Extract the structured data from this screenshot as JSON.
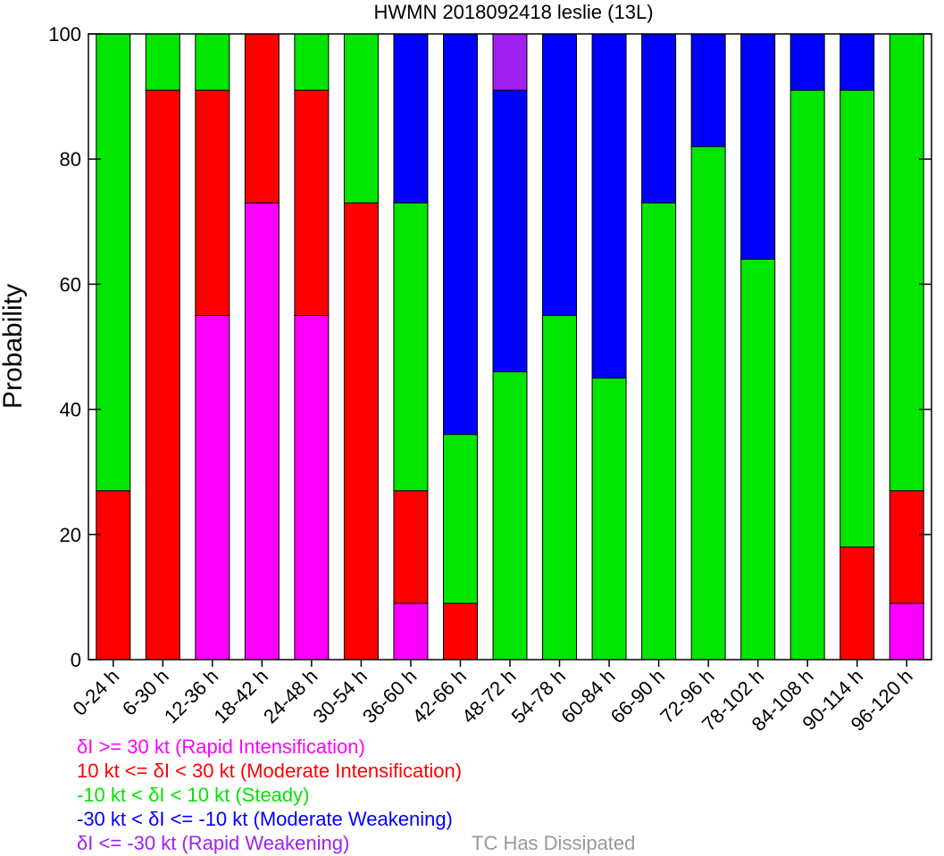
{
  "chart_data": {
    "type": "bar",
    "stacked": true,
    "title": "HWMN 2018092418 leslie (13L)",
    "xlabel": "",
    "ylabel": "Probability",
    "ylim": [
      0,
      100
    ],
    "yticks": [
      0,
      20,
      40,
      60,
      80,
      100
    ],
    "grid": false,
    "categories": [
      "0-24 h",
      "6-30 h",
      "12-36 h",
      "18-42 h",
      "24-48 h",
      "30-54 h",
      "36-60 h",
      "42-66 h",
      "48-72 h",
      "54-78 h",
      "60-84 h",
      "66-90 h",
      "72-96 h",
      "78-102 h",
      "84-108 h",
      "90-114 h",
      "96-120 h"
    ],
    "series": [
      {
        "name": "δI >= 30 kt (Rapid Intensification)",
        "color": "#ff00ff",
        "values": [
          0,
          0,
          55,
          73,
          55,
          0,
          9,
          0,
          0,
          0,
          0,
          0,
          0,
          0,
          0,
          0,
          9
        ]
      },
      {
        "name": "10 kt <= δI < 30 kt (Moderate Intensification)",
        "color": "#ff0000",
        "values": [
          27,
          91,
          36,
          27,
          36,
          73,
          18,
          9,
          0,
          0,
          0,
          0,
          0,
          0,
          0,
          18,
          18
        ]
      },
      {
        "name": "-10 kt < δI < 10 kt (Steady)",
        "color": "#00e600",
        "values": [
          73,
          9,
          9,
          0,
          9,
          27,
          46,
          27,
          46,
          55,
          45,
          73,
          82,
          64,
          91,
          73,
          73
        ]
      },
      {
        "name": "-30 kt < δI <= -10 kt (Moderate Weakening)",
        "color": "#0000ff",
        "values": [
          0,
          0,
          0,
          0,
          0,
          0,
          27,
          64,
          45,
          45,
          55,
          27,
          18,
          36,
          9,
          9,
          0
        ]
      },
      {
        "name": "δI <= -30 kt (Rapid Weakening)",
        "color": "#a020f0",
        "values": [
          0,
          0,
          0,
          0,
          0,
          0,
          0,
          0,
          9,
          0,
          0,
          0,
          0,
          0,
          0,
          0,
          0
        ]
      }
    ],
    "dissipated_label": "TC Has Dissipated",
    "dissipated_color": "#999999"
  }
}
